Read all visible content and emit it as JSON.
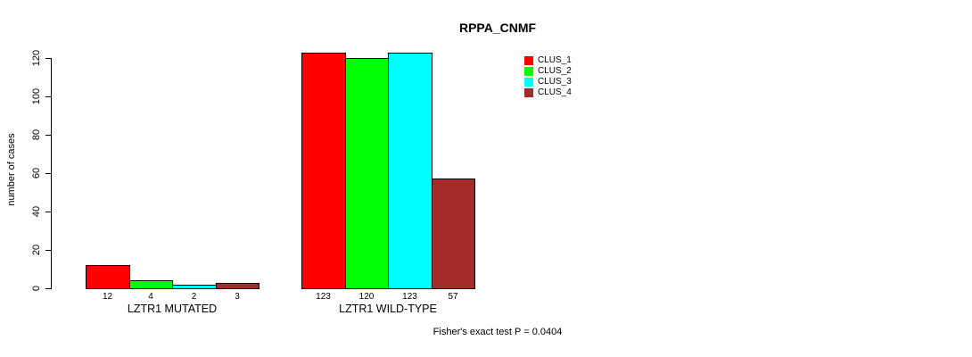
{
  "chart_data": {
    "type": "bar",
    "title": "RPPA_CNMF",
    "xlabel": "",
    "ylabel": "number of cases",
    "categories": [
      "LZTR1 MUTATED",
      "LZTR1 WILD-TYPE"
    ],
    "series": [
      {
        "name": "CLUS_1",
        "color": "#ff0000",
        "values": [
          12,
          123
        ]
      },
      {
        "name": "CLUS_2",
        "color": "#00ff00",
        "values": [
          4,
          120
        ]
      },
      {
        "name": "CLUS_3",
        "color": "#00ffff",
        "values": [
          2,
          123
        ]
      },
      {
        "name": "CLUS_4",
        "color": "#a52a2a",
        "values": [
          3,
          57
        ]
      }
    ],
    "bar_value_labels": [
      [
        "12",
        "4",
        "2",
        "3"
      ],
      [
        "123",
        "120",
        "123",
        "57"
      ]
    ],
    "yticks": [
      0,
      20,
      40,
      60,
      80,
      100,
      120
    ],
    "ylim": [
      0,
      129
    ],
    "grid": false,
    "legend_position": "top-right",
    "annotation": "Fisher's exact test P = 0.0404"
  }
}
